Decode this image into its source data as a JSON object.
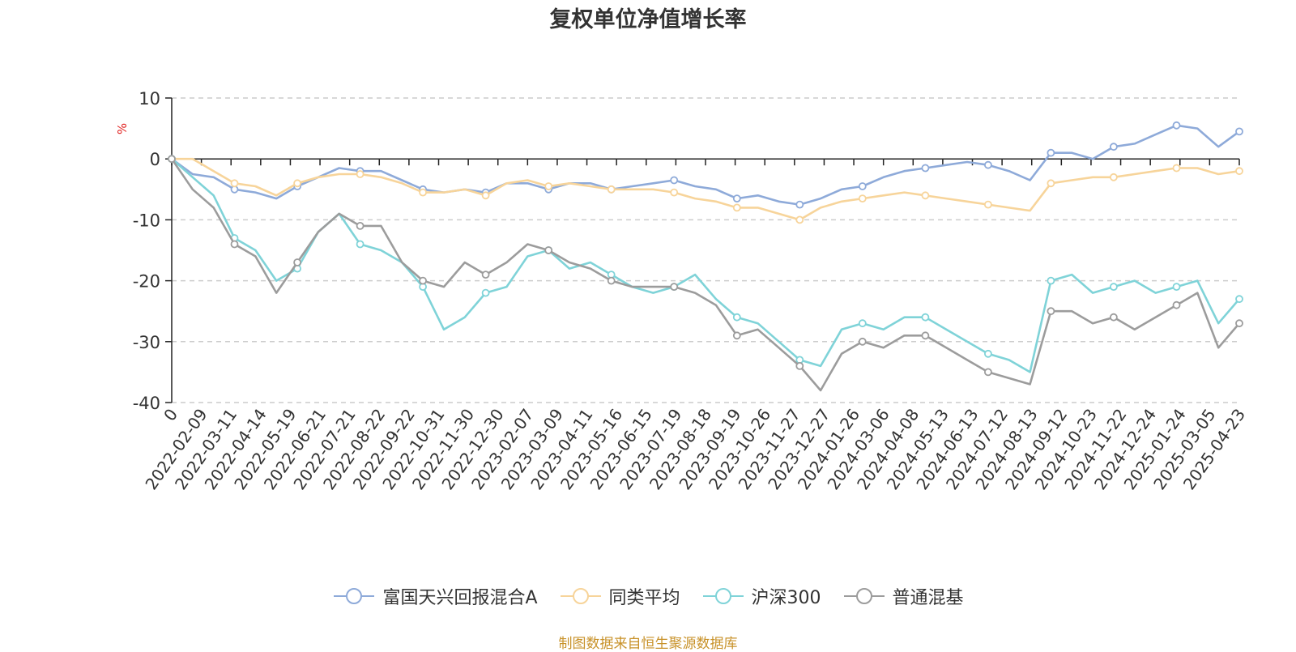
{
  "chart_data": {
    "type": "line",
    "title": "复权单位净值增长率",
    "ylabel": "%",
    "ylim": [
      -40,
      10
    ],
    "yticks": [
      10,
      0,
      -10,
      -20,
      -30,
      -40
    ],
    "grid": true,
    "legend_position": "bottom",
    "x_tick_labels": [
      "0",
      "2022-02-09",
      "2022-03-11",
      "2022-04-14",
      "2022-05-19",
      "2022-06-21",
      "2022-07-21",
      "2022-08-22",
      "2022-09-22",
      "2022-10-31",
      "2022-11-30",
      "2022-12-30",
      "2023-02-07",
      "2023-03-09",
      "2023-04-11",
      "2023-05-16",
      "2023-06-15",
      "2023-07-19",
      "2023-08-18",
      "2023-09-19",
      "2023-10-26",
      "2023-11-27",
      "2023-12-27",
      "2024-01-26",
      "2024-03-06",
      "2024-04-08",
      "2024-05-13",
      "2024-06-13",
      "2024-07-12",
      "2024-08-13",
      "2024-09-12",
      "2024-10-23",
      "2024-11-22",
      "2024-12-24",
      "2025-01-24",
      "2025-03-05",
      "2025-04-23"
    ],
    "series": [
      {
        "name": "富国天兴回报混合A",
        "color": "#8eaad9",
        "values": [
          0,
          -2.5,
          -3,
          -5,
          -5.5,
          -6.5,
          -4.5,
          -3,
          -1.5,
          -2,
          -2,
          -3.5,
          -5,
          -5.5,
          -5,
          -5.5,
          -4,
          -4,
          -5,
          -4,
          -4,
          -5,
          -4.5,
          -4,
          -3.5,
          -4.5,
          -5,
          -6.5,
          -6,
          -7,
          -7.5,
          -6.5,
          -5,
          -4.5,
          -3,
          -2,
          -1.5,
          -1,
          -0.5,
          -1,
          -2,
          -3.5,
          1,
          1,
          0,
          2,
          2.5,
          4,
          5.5,
          5,
          2,
          4.5
        ]
      },
      {
        "name": "同类平均",
        "color": "#f7d49a",
        "values": [
          0,
          0,
          -2,
          -4,
          -4.5,
          -6,
          -4,
          -3,
          -2.5,
          -2.5,
          -3,
          -4,
          -5.5,
          -5.5,
          -5,
          -6,
          -4,
          -3.5,
          -4.5,
          -4,
          -4.5,
          -5,
          -5,
          -5,
          -5.5,
          -6.5,
          -7,
          -8,
          -8,
          -9,
          -10,
          -8,
          -7,
          -6.5,
          -6,
          -5.5,
          -6,
          -6.5,
          -7,
          -7.5,
          -8,
          -8.5,
          -4,
          -3.5,
          -3,
          -3,
          -2.5,
          -2,
          -1.5,
          -1.5,
          -2.5,
          -2
        ]
      },
      {
        "name": "沪深300",
        "color": "#7fd3d8",
        "values": [
          0,
          -3,
          -6,
          -13,
          -15,
          -20,
          -18,
          -12,
          -9,
          -14,
          -15,
          -17,
          -21,
          -28,
          -26,
          -22,
          -21,
          -16,
          -15,
          -18,
          -17,
          -19,
          -21,
          -22,
          -21,
          -19,
          -23,
          -26,
          -27,
          -30,
          -33,
          -34,
          -28,
          -27,
          -28,
          -26,
          -26,
          -28,
          -30,
          -32,
          -33,
          -35,
          -20,
          -19,
          -22,
          -21,
          -20,
          -22,
          -21,
          -20,
          -27,
          -23
        ]
      },
      {
        "name": "普通混基",
        "color": "#9c9c9c",
        "values": [
          0,
          -5,
          -8,
          -14,
          -16,
          -22,
          -17,
          -12,
          -9,
          -11,
          -11,
          -17,
          -20,
          -21,
          -17,
          -19,
          -17,
          -14,
          -15,
          -17,
          -18,
          -20,
          -21,
          -21,
          -21,
          -22,
          -24,
          -29,
          -28,
          -31,
          -34,
          -38,
          -32,
          -30,
          -31,
          -29,
          -29,
          -31,
          -33,
          -35,
          -36,
          -37,
          -25,
          -25,
          -27,
          -26,
          -28,
          -26,
          -24,
          -22,
          -31,
          -27
        ]
      }
    ]
  },
  "legend_items": [
    {
      "label": "富国天兴回报混合A"
    },
    {
      "label": "同类平均"
    },
    {
      "label": "沪深300"
    },
    {
      "label": "普通混基"
    }
  ],
  "footer": "制图数据来自恒生聚源数据库"
}
